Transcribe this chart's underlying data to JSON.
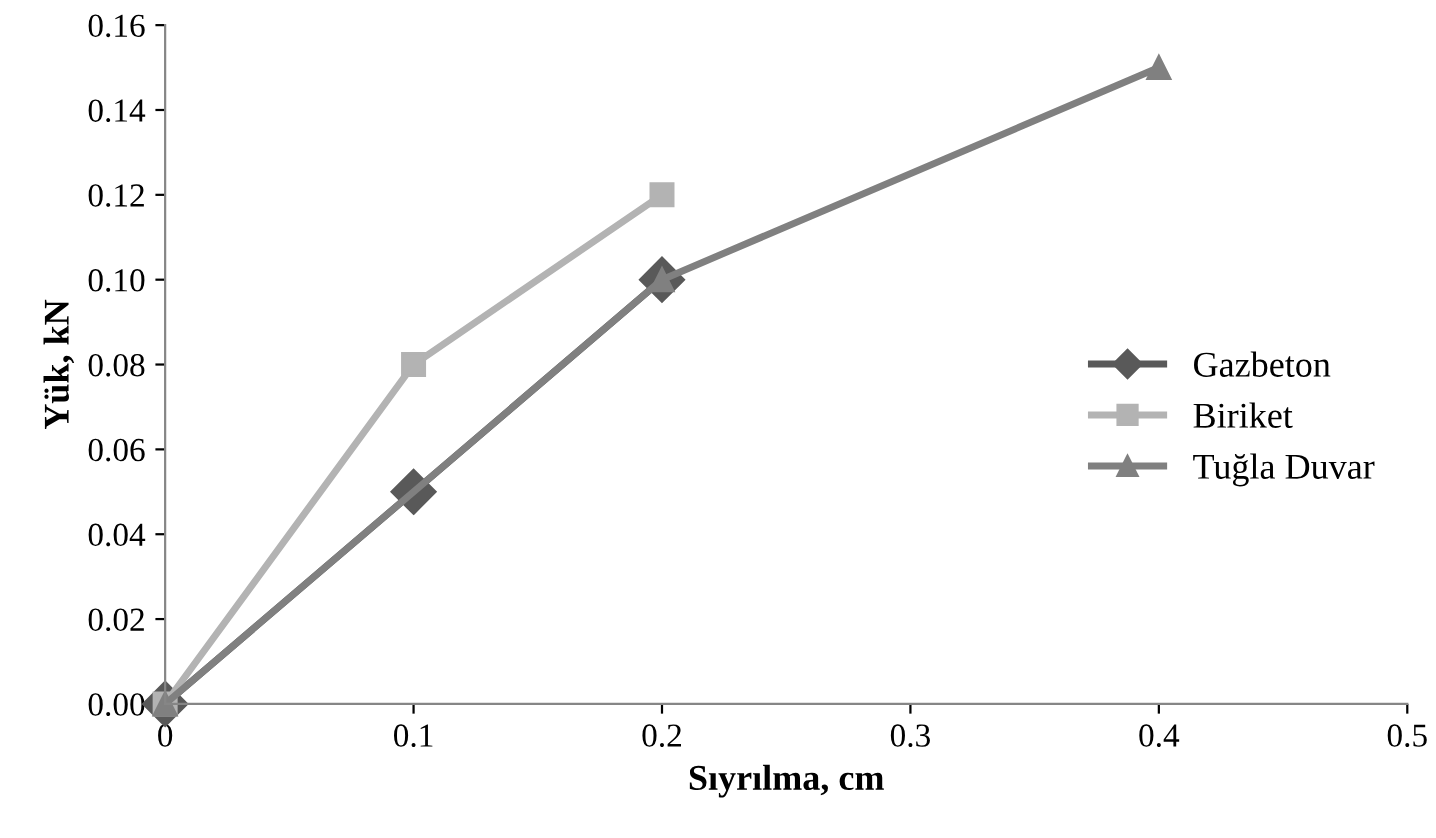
{
  "chart_data": {
    "type": "line",
    "xlabel": "Sıyrılma, cm",
    "ylabel": "Yük, kN",
    "xlim": [
      0,
      0.5
    ],
    "xticks": [
      0,
      0.1,
      0.2,
      0.3,
      0.4,
      0.5
    ],
    "ylim": [
      0,
      0.16
    ],
    "yticks": [
      {
        "value": 0,
        "label": "0.00"
      },
      {
        "value": 0.02,
        "label": "0.02"
      },
      {
        "value": 0.04,
        "label": "0.04"
      },
      {
        "value": 0.06,
        "label": "0.06"
      },
      {
        "value": 0.08,
        "label": "0.08"
      },
      {
        "value": 0.1,
        "label": "0.10"
      },
      {
        "value": 0.12,
        "label": "0.12"
      },
      {
        "value": 0.14,
        "label": "0.14"
      },
      {
        "value": 0.16,
        "label": "0.16"
      }
    ],
    "grid": false,
    "legend": "right",
    "line_style": "solid",
    "series": [
      {
        "name": "Gazbeton",
        "color": "#595959",
        "marker": "diamond",
        "x": [
          0,
          0.1,
          0.2
        ],
        "values": [
          0,
          0.05,
          0.1
        ]
      },
      {
        "name": "Biriket",
        "color": "#b3b3b3",
        "marker": "square",
        "x": [
          0,
          0.1,
          0.2
        ],
        "values": [
          0,
          0.08,
          0.12
        ]
      },
      {
        "name": "Tuğla Duvar",
        "color": "#808080",
        "marker": "triangle",
        "x": [
          0,
          0.2,
          0.4
        ],
        "values": [
          0,
          0.1,
          0.15
        ]
      }
    ]
  }
}
